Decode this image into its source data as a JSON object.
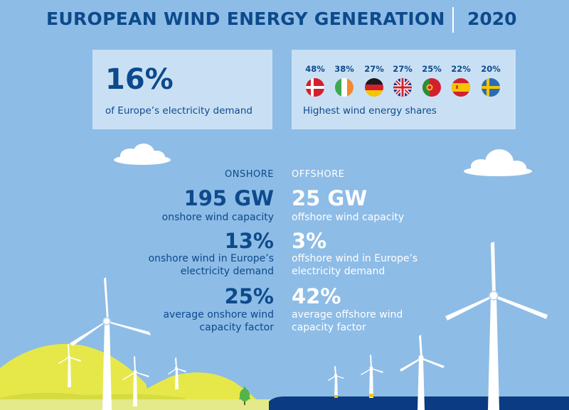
{
  "header": {
    "title": "EUROPEAN WIND ENERGY GENERATION",
    "year": "2020"
  },
  "share": {
    "value": "16%",
    "label": "of Europe’s electricity demand"
  },
  "countries": {
    "label": "Highest wind energy shares",
    "items": [
      {
        "percent": "48%",
        "flag_icon": "denmark-flag-icon"
      },
      {
        "percent": "38%",
        "flag_icon": "ireland-flag-icon"
      },
      {
        "percent": "27%",
        "flag_icon": "germany-flag-icon"
      },
      {
        "percent": "27%",
        "flag_icon": "uk-flag-icon"
      },
      {
        "percent": "25%",
        "flag_icon": "portugal-flag-icon"
      },
      {
        "percent": "22%",
        "flag_icon": "spain-flag-icon"
      },
      {
        "percent": "20%",
        "flag_icon": "sweden-flag-icon"
      }
    ]
  },
  "onshore": {
    "heading": "ONSHORE",
    "capacity_value": "195 GW",
    "capacity_label": "onshore wind capacity",
    "demand_value": "13%",
    "demand_label_line1": "onshore wind in Europe’s",
    "demand_label_line2": "electricity demand",
    "factor_value": "25%",
    "factor_label_line1": "average onshore wind",
    "factor_label_line2": "capacity factor"
  },
  "offshore": {
    "heading": "OFFSHORE",
    "capacity_value": "25 GW",
    "capacity_label": "offshore wind capacity",
    "demand_value": "3%",
    "demand_label_line1": "offshore wind in Europe’s",
    "demand_label_line2": "electricity demand",
    "factor_value": "42%",
    "factor_label_line1": "average offshore wind",
    "factor_label_line2": "capacity factor"
  },
  "colors": {
    "sky": "#8dbce6",
    "panel": "#c9e0f4",
    "navy": "#0d4a8c",
    "hill_yellow": "#e6e84a",
    "sea": "#0b3b82"
  }
}
